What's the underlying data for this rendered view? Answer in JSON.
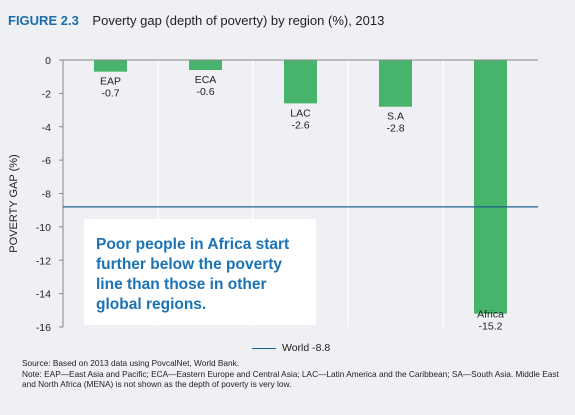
{
  "figure": {
    "number": "FIGURE 2.3",
    "title": "Poverty gap (depth of poverty) by region (%), 2013"
  },
  "chart_data": {
    "type": "bar",
    "categories": [
      "EAP",
      "ECA",
      "LAC",
      "S.A",
      "Africa"
    ],
    "values": [
      -0.7,
      -0.6,
      -2.6,
      -2.8,
      -15.2
    ],
    "value_labels": [
      "-0.7",
      "-0.6",
      "-2.6",
      "-2.8",
      "-15.2"
    ],
    "ylabel": "POVERTY GAP (%)",
    "ylim": [
      -16,
      0
    ],
    "yticks": [
      0,
      -2,
      -4,
      -6,
      -8,
      -10,
      -12,
      -14,
      -16
    ],
    "grid": "vertical",
    "reference_line": {
      "name": "World -8.8",
      "value": -8.8
    },
    "legend": "bottom-center"
  },
  "colors": {
    "bar": "#46b46b",
    "reference_line": "#1c5f8e",
    "callout_text": "#1b73b5",
    "title_accent": "#1b6ea8"
  },
  "callout": {
    "text": "Poor people in Africa start further below the poverty line than those in other global regions."
  },
  "footnote": {
    "source": "Source: Based on 2013 data using PovcalNet, World Bank.",
    "note": "Note: EAP—East Asia and Pacific; ECA—Eastern Europe and Central Asia; LAC—Latin America and the Caribbean; SA—South Asia. Middle East and North Africa (MENA) is not shown as the depth of poverty is very low."
  }
}
